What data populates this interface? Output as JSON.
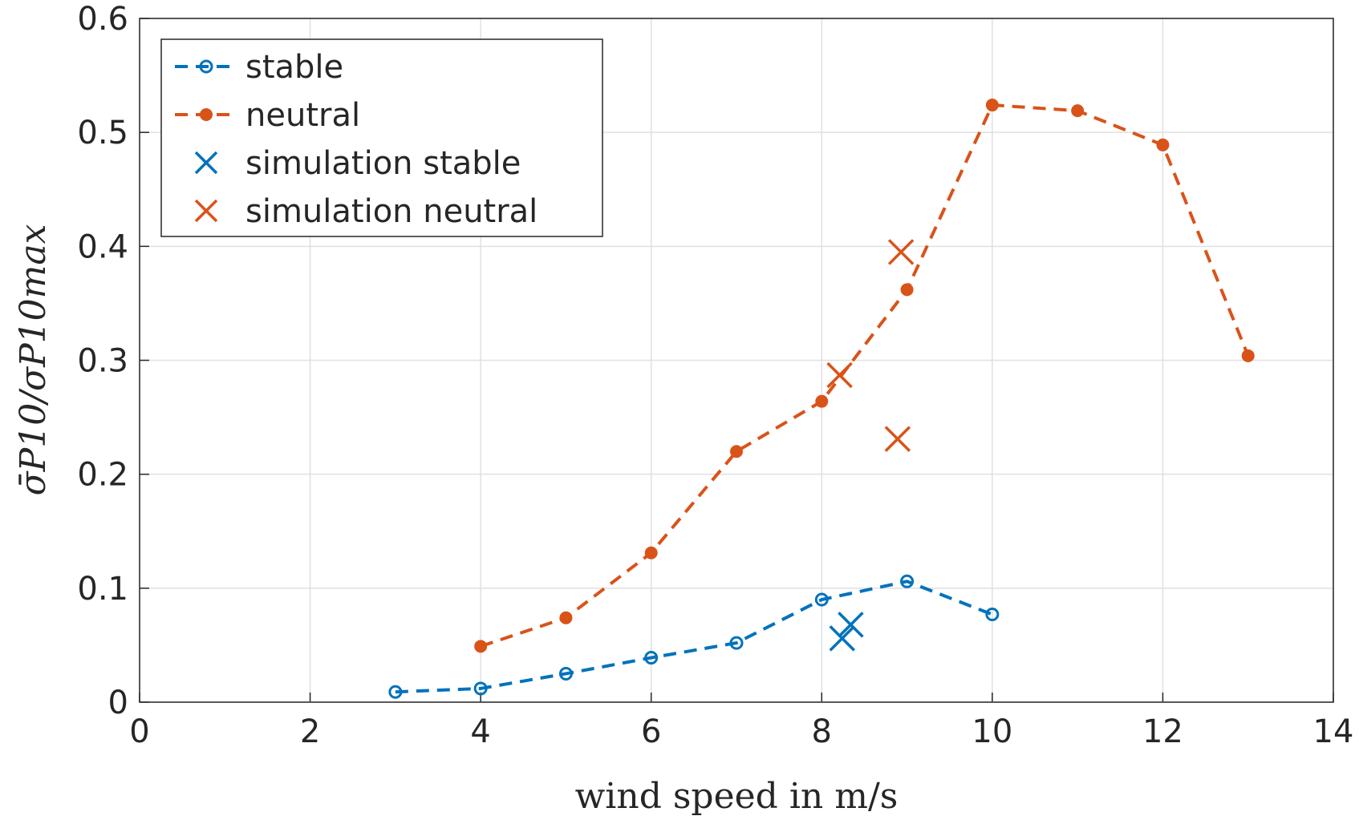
{
  "chart_data": {
    "type": "line",
    "xlabel": "wind speed in m/s",
    "ylabel": "σ̄P10/σP10max",
    "xlim": [
      0,
      14
    ],
    "xticks": [
      0,
      2,
      4,
      6,
      8,
      10,
      12,
      14
    ],
    "ylim": [
      0,
      0.6
    ],
    "yticks": [
      0,
      0.1,
      0.2,
      0.3,
      0.4,
      0.5,
      0.6
    ],
    "grid": true,
    "legend": "upper left",
    "series": [
      {
        "name": "stable",
        "color": "#0072bd",
        "marker": "o",
        "line": "dashed",
        "x": [
          3,
          4,
          5,
          6,
          7,
          8,
          9,
          10
        ],
        "values": [
          0.009,
          0.012,
          0.025,
          0.039,
          0.052,
          0.09,
          0.106,
          0.077
        ]
      },
      {
        "name": "neutral",
        "color": "#d95319",
        "marker": "*",
        "line": "dashed",
        "x": [
          4,
          5,
          6,
          7,
          8,
          9,
          10,
          11,
          12,
          13
        ],
        "values": [
          0.049,
          0.074,
          0.131,
          0.22,
          0.264,
          0.362,
          0.524,
          0.519,
          0.489,
          0.304
        ]
      },
      {
        "name": "simulation stable",
        "color": "#0072bd",
        "marker": "x",
        "line": "none",
        "x": [
          8.24,
          8.34
        ],
        "values": [
          0.056,
          0.068
        ]
      },
      {
        "name": "simulation neutral",
        "color": "#d95319",
        "marker": "x",
        "line": "none",
        "x": [
          8.21,
          8.93,
          8.89
        ],
        "values": [
          0.287,
          0.395,
          0.231
        ]
      }
    ]
  }
}
